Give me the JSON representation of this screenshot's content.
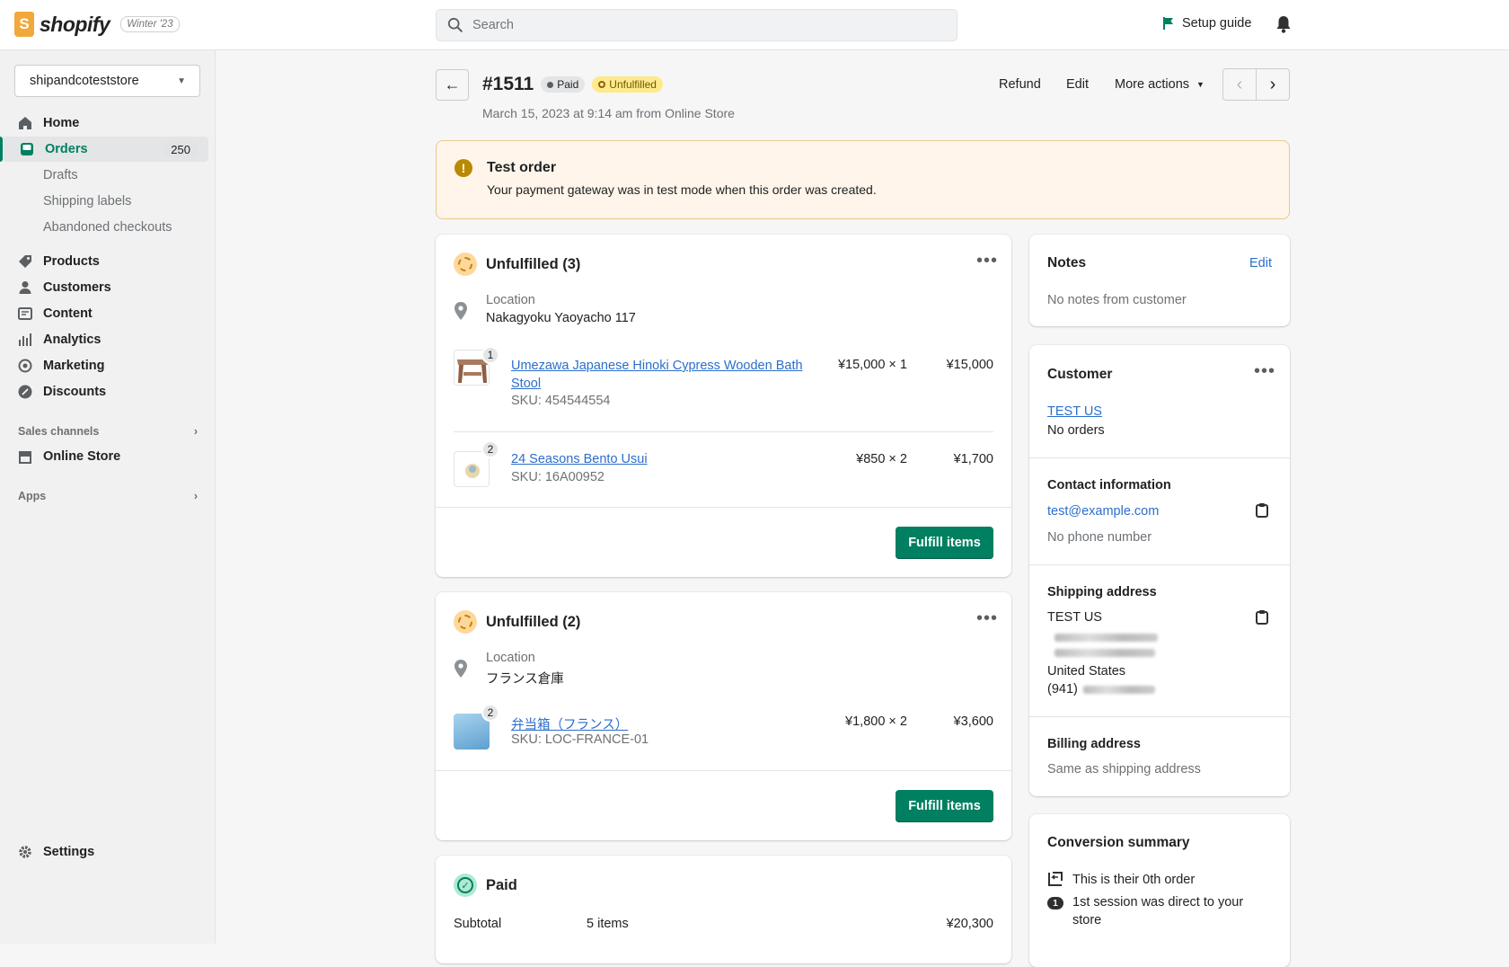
{
  "topbar": {
    "brand": "shopify",
    "version_badge": "Winter '23",
    "search_placeholder": "Search",
    "setup_guide": "Setup guide"
  },
  "sidebar": {
    "store": "shipandcoteststore",
    "items": [
      {
        "label": "Home",
        "icon": "home-icon"
      },
      {
        "label": "Orders",
        "icon": "orders-icon",
        "count": "250",
        "active": true
      },
      {
        "label": "Drafts"
      },
      {
        "label": "Shipping labels"
      },
      {
        "label": "Abandoned checkouts"
      },
      {
        "label": "Products",
        "icon": "tag-icon"
      },
      {
        "label": "Customers",
        "icon": "person-icon"
      },
      {
        "label": "Content",
        "icon": "content-icon"
      },
      {
        "label": "Analytics",
        "icon": "bar-chart-icon"
      },
      {
        "label": "Marketing",
        "icon": "target-icon"
      },
      {
        "label": "Discounts",
        "icon": "discount-icon"
      }
    ],
    "sales_channels": "Sales channels",
    "online_store": "Online Store",
    "apps": "Apps",
    "settings": "Settings"
  },
  "order": {
    "number": "#1511",
    "paid_badge": "Paid",
    "unfulfilled_badge": "Unfulfilled",
    "subtitle": "March 15, 2023 at 9:14 am from Online Store",
    "actions": {
      "refund": "Refund",
      "edit": "Edit",
      "more": "More actions"
    }
  },
  "banner": {
    "title": "Test order",
    "text": "Your payment gateway was in test mode when this order was created."
  },
  "fulfillments": [
    {
      "title": "Unfulfilled (3)",
      "location_label": "Location",
      "location": "Nakagyoku Yaoyacho 117",
      "items": [
        {
          "qty": "1",
          "name": "Umezawa Japanese Hinoki Cypress Wooden Bath Stool",
          "sku": "SKU: 454544554",
          "price": "¥15,000 × 1",
          "total": "¥15,000"
        },
        {
          "qty": "2",
          "name": "24 Seasons Bento Usui",
          "sku": "SKU: 16A00952",
          "price": "¥850 × 2",
          "total": "¥1,700"
        }
      ],
      "button": "Fulfill items"
    },
    {
      "title": "Unfulfilled (2)",
      "location_label": "Location",
      "location": "フランス倉庫",
      "items": [
        {
          "qty": "2",
          "name": "弁当箱（フランス）",
          "sku": "SKU: LOC-FRANCE-01",
          "price": "¥1,800 × 2",
          "total": "¥3,600"
        }
      ],
      "button": "Fulfill items"
    }
  ],
  "payment": {
    "title": "Paid",
    "subtotal_label": "Subtotal",
    "subtotal_items": "5 items",
    "subtotal": "¥20,300"
  },
  "notes": {
    "title": "Notes",
    "edit": "Edit",
    "text": "No notes from customer"
  },
  "customer": {
    "title": "Customer",
    "name": "TEST US",
    "orders": "No orders",
    "contact_title": "Contact information",
    "email": "test@example.com",
    "phone": "No phone number",
    "shipping_title": "Shipping address",
    "ship_name": "TEST US",
    "ship_country": "United States",
    "ship_phone_prefix": "(941)",
    "billing_title": "Billing address",
    "billing_text": "Same as shipping address"
  },
  "conversion": {
    "title": "Conversion summary",
    "line1": "This is their 0th order",
    "line2": "1st session was direct to your store"
  },
  "colors": {
    "accent": "#008060",
    "link": "#2c6ecb",
    "warning_bg": "#fff5ea",
    "unfulfilled_badge": "#ffea8a"
  }
}
